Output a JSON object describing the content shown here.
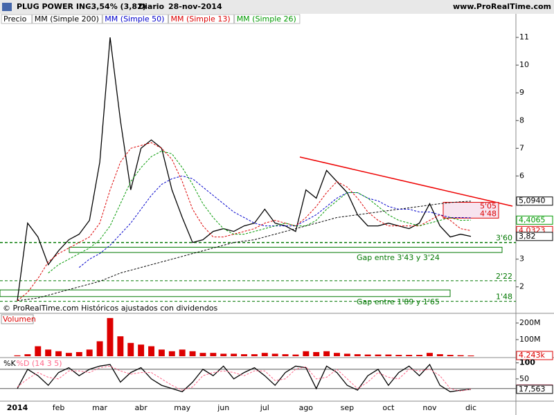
{
  "header": {
    "symbol": "PLUG POWER INC.",
    "change": "-3,54% (3,82)",
    "period": "Diario",
    "date": "28-nov-2014",
    "site": "www.ProRealTime.com"
  },
  "chart_data": [
    {
      "type": "line",
      "note": "© ProRealTime.com Históricos ajustados con dividendos",
      "categories": [
        "2014",
        null,
        null,
        null,
        "feb",
        null,
        null,
        null,
        "mar",
        null,
        null,
        null,
        "abr",
        null,
        null,
        null,
        "may",
        null,
        null,
        null,
        "jun",
        null,
        null,
        null,
        "jul",
        null,
        null,
        null,
        "ago",
        null,
        null,
        null,
        "sep",
        null,
        null,
        null,
        "oct",
        null,
        null,
        null,
        "nov",
        null,
        null,
        null,
        "dic"
      ],
      "ylim": [
        1.12,
        11.85
      ],
      "yticks": [
        2,
        3,
        4,
        5,
        6,
        7,
        8,
        9,
        10,
        11
      ],
      "series": [
        {
          "name": "Precio",
          "color": "#000000",
          "style": "solid",
          "values": [
            1.5,
            4.3,
            3.8,
            2.8,
            3.3,
            3.7,
            3.9,
            4.4,
            6.5,
            11,
            8,
            5.5,
            7,
            7.3,
            7.0,
            5.5,
            4.5,
            3.6,
            3.7,
            4.0,
            4.1,
            4.0,
            4.2,
            4.3,
            4.8,
            4.3,
            4.2,
            4.0,
            5.5,
            5.2,
            6.2,
            5.8,
            5.4,
            4.6,
            4.2,
            4.2,
            4.3,
            4.2,
            4.1,
            4.3,
            5.0,
            4.2,
            3.8,
            3.9,
            3.82
          ]
        },
        {
          "name": "MM (Simple 200)",
          "color": "#000000",
          "style": "dashed",
          "values": [
            1.5,
            1.55,
            1.6,
            1.7,
            1.8,
            1.9,
            2.0,
            2.1,
            2.2,
            2.35,
            2.5,
            2.6,
            2.7,
            2.8,
            2.9,
            3.0,
            3.1,
            3.2,
            3.3,
            3.4,
            3.5,
            3.6,
            3.65,
            3.7,
            3.8,
            3.9,
            4.0,
            4.1,
            4.2,
            4.3,
            4.4,
            4.5,
            4.55,
            4.6,
            4.65,
            4.7,
            4.75,
            4.8,
            4.85,
            4.9,
            4.95,
            5.0,
            5.04,
            5.07,
            5.09
          ]
        },
        {
          "name": "MM (Simple 50)",
          "color": "#0000cc",
          "style": "dashed",
          "values": [
            null,
            null,
            null,
            null,
            null,
            null,
            2.7,
            3.0,
            3.2,
            3.5,
            3.9,
            4.3,
            4.8,
            5.3,
            5.7,
            5.9,
            6.0,
            5.9,
            5.6,
            5.3,
            5.0,
            4.7,
            4.5,
            4.3,
            4.2,
            4.2,
            4.2,
            4.2,
            4.4,
            4.6,
            4.9,
            5.2,
            5.4,
            5.4,
            5.2,
            5.1,
            4.9,
            4.8,
            4.8,
            4.7,
            4.7,
            4.6,
            4.5,
            4.5,
            4.49
          ]
        },
        {
          "name": "MM (Simple 13)",
          "color": "#dd0000",
          "style": "dashed",
          "values": [
            1.5,
            1.8,
            2.3,
            2.9,
            3.2,
            3.4,
            3.6,
            3.8,
            4.3,
            5.5,
            6.5,
            7.0,
            7.1,
            7.2,
            7.0,
            6.6,
            5.8,
            4.8,
            4.2,
            3.8,
            3.8,
            3.9,
            4.0,
            4.1,
            4.3,
            4.4,
            4.3,
            4.2,
            4.5,
            4.9,
            5.4,
            5.8,
            5.6,
            5.2,
            4.7,
            4.4,
            4.2,
            4.2,
            4.2,
            4.2,
            4.4,
            4.6,
            4.4,
            4.1,
            4.03
          ]
        },
        {
          "name": "MM (Simple 26)",
          "color": "#009900",
          "style": "dashed",
          "values": [
            null,
            null,
            null,
            2.5,
            2.8,
            3.0,
            3.2,
            3.4,
            3.7,
            4.2,
            5.0,
            5.8,
            6.3,
            6.7,
            6.9,
            6.8,
            6.3,
            5.7,
            5.0,
            4.5,
            4.1,
            3.9,
            3.9,
            4.0,
            4.1,
            4.2,
            4.3,
            4.2,
            4.2,
            4.4,
            4.8,
            5.1,
            5.4,
            5.4,
            5.2,
            4.9,
            4.6,
            4.4,
            4.3,
            4.2,
            4.3,
            4.4,
            4.5,
            4.4,
            4.41
          ]
        }
      ],
      "levels": [
        {
          "value": 3.6,
          "label": "3'60",
          "color": "#007700"
        },
        {
          "value": 2.22,
          "label": "2'22",
          "color": "#007700"
        },
        {
          "value": 1.48,
          "label": "1'48",
          "color": "#007700"
        }
      ],
      "gaps": [
        {
          "high": 3.43,
          "low": 3.24,
          "label": "Gap entre 3'43 y 3'24",
          "color": "#007700"
        },
        {
          "high": 1.89,
          "low": 1.65,
          "label": "Gap entre 1'89 y 1'65",
          "color": "#007700"
        }
      ],
      "zone": {
        "high": 5.05,
        "low": 4.48,
        "high_label": "5'05",
        "low_label": "4'48",
        "color": "#dd0000"
      },
      "price_tags": [
        {
          "value": 5.094,
          "label": "5,0940",
          "color": "#000000"
        },
        {
          "value": 4.4065,
          "label": "4,4065",
          "color": "#009900"
        },
        {
          "value": 4.0323,
          "label": "4,0323",
          "color": "#dd0000"
        },
        {
          "value": 3.82,
          "label": "3,82",
          "color": "#000000"
        }
      ]
    },
    {
      "type": "bar",
      "title": "Volumen",
      "color": "#dd0000",
      "ylim": [
        0,
        250
      ],
      "yticks": [
        {
          "value": 100,
          "label": "100M"
        },
        {
          "value": 200,
          "label": "200M"
        }
      ],
      "values": [
        5,
        12,
        60,
        40,
        30,
        20,
        25,
        40,
        90,
        230,
        120,
        80,
        70,
        60,
        40,
        30,
        40,
        30,
        20,
        20,
        15,
        15,
        12,
        12,
        20,
        15,
        12,
        10,
        30,
        25,
        30,
        20,
        15,
        12,
        10,
        10,
        10,
        8,
        8,
        8,
        20,
        12,
        8,
        6,
        4.243
      ],
      "price_tags": [
        {
          "value": 4.243,
          "label": "4.243k",
          "color": "#dd0000"
        }
      ]
    },
    {
      "type": "line",
      "ylim": [
        -15,
        110
      ],
      "yticks": [
        50,
        100
      ],
      "levels": [
        80,
        20
      ],
      "series": [
        {
          "name": "%K",
          "color": "#000000",
          "style": "solid",
          "values": [
            20,
            80,
            60,
            30,
            70,
            85,
            60,
            80,
            90,
            95,
            40,
            70,
            85,
            50,
            30,
            20,
            10,
            40,
            80,
            60,
            90,
            50,
            70,
            85,
            60,
            30,
            70,
            90,
            85,
            20,
            90,
            70,
            30,
            15,
            60,
            80,
            30,
            70,
            90,
            60,
            95,
            30,
            10,
            15,
            17.563
          ]
        },
        {
          "name": "%D (14 3 5)",
          "color": "#ff6688",
          "style": "dashed",
          "values": [
            25,
            50,
            70,
            55,
            50,
            75,
            75,
            70,
            85,
            90,
            75,
            65,
            70,
            70,
            50,
            30,
            15,
            25,
            60,
            70,
            75,
            70,
            60,
            75,
            75,
            45,
            50,
            80,
            88,
            50,
            55,
            80,
            50,
            20,
            40,
            70,
            55,
            50,
            80,
            75,
            80,
            60,
            20,
            12,
            18.632
          ]
        }
      ],
      "price_tags": [
        {
          "value": 18.632,
          "label": "18,632",
          "color": "#ff6688"
        },
        {
          "value": 17.563,
          "label": "17,563",
          "color": "#000000"
        }
      ]
    }
  ]
}
